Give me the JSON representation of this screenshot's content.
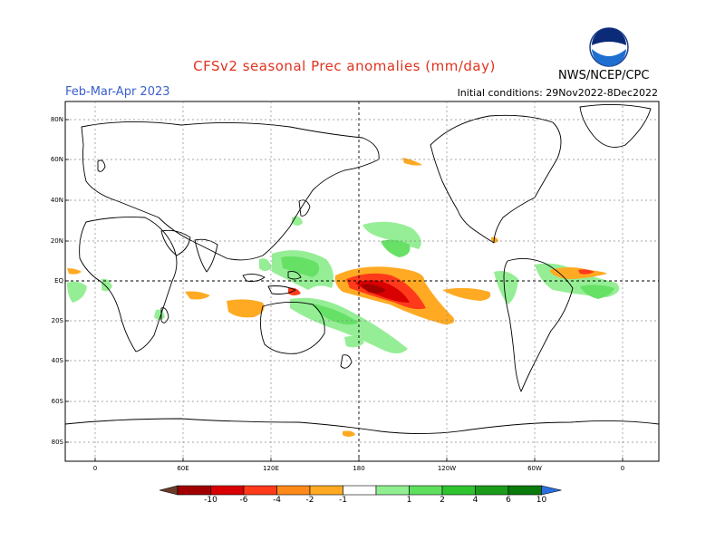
{
  "header": {
    "title": "CFSv2 seasonal Prec anomalies (mm/day)",
    "season": "Feb-Mar-Apr 2023",
    "initial_conditions": "Initial conditions: 29Nov2022-8Dec2022",
    "agency": "NWS/NCEP/CPC",
    "logo_text": "NOAA"
  },
  "map": {
    "latitude_labels": [
      "80N",
      "60N",
      "40N",
      "20N",
      "EQ",
      "20S",
      "40S",
      "60S",
      "80S"
    ],
    "longitude_labels": [
      "0",
      "60E",
      "120E",
      "180",
      "120W",
      "60W",
      "0"
    ]
  },
  "colorbar": {
    "labels": [
      "-10",
      "-6",
      "-4",
      "-2",
      "-1",
      "1",
      "2",
      "4",
      "6",
      "10"
    ],
    "colors": [
      "#6b3b2a",
      "#a00000",
      "#d80000",
      "#ff3a1a",
      "#ff8a1a",
      "#ffaa22",
      "#ffffff",
      "#90ee90",
      "#5ee05e",
      "#2fc42f",
      "#1a9c1a",
      "#0a7a0a",
      "#2a6fe0"
    ]
  }
}
